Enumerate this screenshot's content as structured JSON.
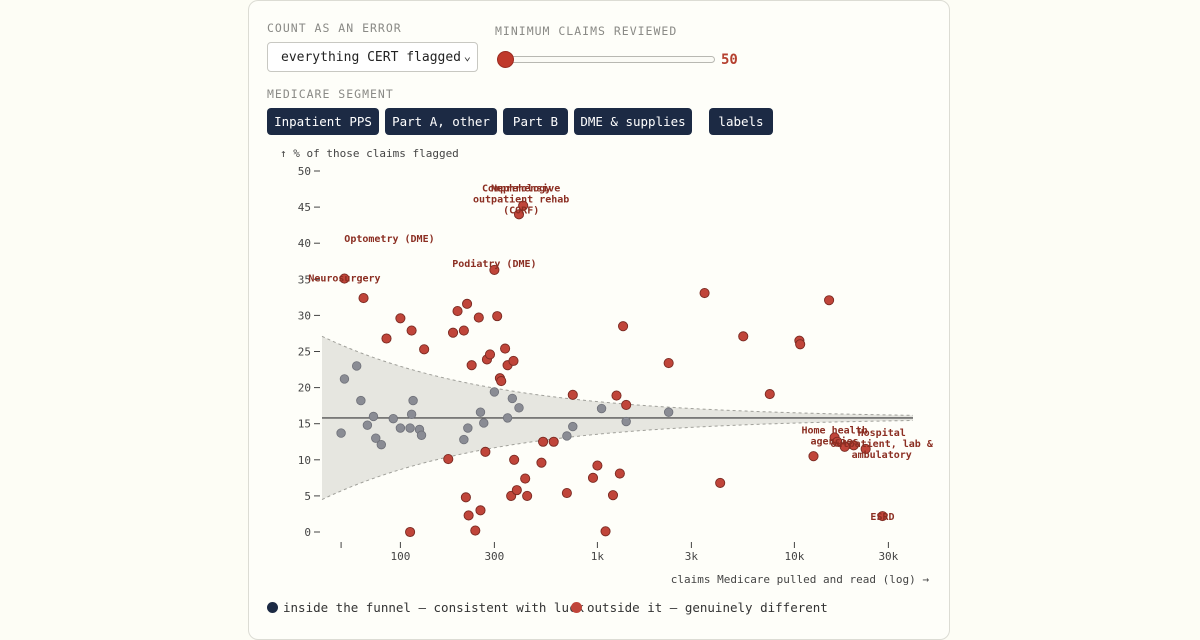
{
  "controls": {
    "error_label": "COUNT AS AN ERROR",
    "error_value": "everything CERT flagged",
    "claims_label": "MINIMUM CLAIMS REVIEWED",
    "claims_value": "50",
    "claims_slider_fraction": 0.0,
    "segment_label": "MEDICARE SEGMENT",
    "segments": [
      "Inpatient PPS",
      "Part A, other",
      "Part B",
      "DME & supplies"
    ],
    "labels_button": "labels"
  },
  "legend": {
    "inside": "inside the funnel — consistent with luck",
    "outside": "outside it — genuinely different"
  },
  "colors": {
    "inside": "#8a8c94",
    "outside": "#c0453a",
    "button": "#1c2a44",
    "funnel": "#e6e6e0"
  },
  "chart_data": {
    "type": "scatter",
    "x_scale": "log",
    "xlabel": "claims Medicare pulled and read (log) →",
    "ylabel": "↑ % of those claims flagged",
    "xlim": [
      40,
      40000
    ],
    "ylim": [
      0,
      50
    ],
    "x_ticks": [
      {
        "value": 50,
        "label": ""
      },
      {
        "value": 100,
        "label": "100"
      },
      {
        "value": 300,
        "label": "300"
      },
      {
        "value": 1000,
        "label": "1k"
      },
      {
        "value": 3000,
        "label": "3k"
      },
      {
        "value": 10000,
        "label": "10k"
      },
      {
        "value": 30000,
        "label": "30k"
      }
    ],
    "y_ticks": [
      0,
      5,
      10,
      15,
      20,
      25,
      30,
      35,
      40,
      45,
      50
    ],
    "mean_rate": 15.8,
    "funnel_n_range": [
      40,
      40000
    ],
    "inside_points": [
      [
        50,
        13.7
      ],
      [
        52,
        21.2
      ],
      [
        60,
        23
      ],
      [
        63,
        18.2
      ],
      [
        68,
        14.8
      ],
      [
        73,
        16
      ],
      [
        75,
        13
      ],
      [
        80,
        12.1
      ],
      [
        92,
        15.7
      ],
      [
        100,
        14.4
      ],
      [
        112,
        14.4
      ],
      [
        114,
        16.3
      ],
      [
        116,
        18.2
      ],
      [
        125,
        14.2
      ],
      [
        128,
        13.4
      ],
      [
        210,
        12.8
      ],
      [
        220,
        14.4
      ],
      [
        255,
        16.6
      ],
      [
        265,
        15.1
      ],
      [
        300,
        19.4
      ],
      [
        350,
        15.8
      ],
      [
        370,
        18.5
      ],
      [
        400,
        17.2
      ],
      [
        700,
        13.3
      ],
      [
        750,
        14.6
      ],
      [
        1050,
        17.1
      ],
      [
        1400,
        15.3
      ],
      [
        2300,
        16.6
      ]
    ],
    "outside_points": [
      [
        52,
        35.1
      ],
      [
        65,
        32.4
      ],
      [
        85,
        26.8
      ],
      [
        100,
        29.6
      ],
      [
        112,
        0
      ],
      [
        114,
        27.9
      ],
      [
        132,
        25.3
      ],
      [
        175,
        10.1
      ],
      [
        185,
        27.6
      ],
      [
        195,
        30.6
      ],
      [
        210,
        27.9
      ],
      [
        215,
        4.8
      ],
      [
        218,
        31.6
      ],
      [
        222,
        2.3
      ],
      [
        230,
        23.1
      ],
      [
        240,
        0.2
      ],
      [
        250,
        29.7
      ],
      [
        255,
        3.0
      ],
      [
        270,
        11.1
      ],
      [
        275,
        23.9
      ],
      [
        285,
        24.6
      ],
      [
        300,
        36.3
      ],
      [
        310,
        29.9
      ],
      [
        320,
        21.3
      ],
      [
        325,
        20.9
      ],
      [
        340,
        25.4
      ],
      [
        350,
        23.1
      ],
      [
        365,
        5.0
      ],
      [
        375,
        23.7
      ],
      [
        378,
        10.0
      ],
      [
        390,
        5.8
      ],
      [
        400,
        44.0
      ],
      [
        420,
        45.2
      ],
      [
        430,
        7.4
      ],
      [
        440,
        5.0
      ],
      [
        520,
        9.6
      ],
      [
        530,
        12.5
      ],
      [
        600,
        12.5
      ],
      [
        700,
        5.4
      ],
      [
        750,
        19.0
      ],
      [
        950,
        7.5
      ],
      [
        1000,
        9.2
      ],
      [
        1100,
        0.1
      ],
      [
        1200,
        5.1
      ],
      [
        1250,
        18.9
      ],
      [
        1300,
        8.1
      ],
      [
        1350,
        28.5
      ],
      [
        1400,
        17.6
      ],
      [
        2300,
        23.4
      ],
      [
        3500,
        33.1
      ],
      [
        4200,
        6.8
      ],
      [
        5500,
        27.1
      ],
      [
        7500,
        19.1
      ],
      [
        10600,
        26.5
      ],
      [
        10700,
        26
      ],
      [
        12500,
        10.5
      ],
      [
        15000,
        32.1
      ],
      [
        16000,
        13.1
      ],
      [
        16500,
        12.5
      ],
      [
        18000,
        11.8
      ],
      [
        20000,
        12.0
      ],
      [
        23000,
        11.5
      ],
      [
        28000,
        2.2
      ]
    ],
    "annotations": [
      {
        "text": "Neurosurgery",
        "x": 52,
        "y": 35.1
      },
      {
        "text": "Optometry (DME)",
        "x": 88,
        "y": 40.6
      },
      {
        "text": "Podiatry (DME)",
        "x": 300,
        "y": 36.3
      },
      {
        "text": "Comprehensive outpatient rehab (CORF)",
        "x": 420,
        "y": 45.2
      },
      {
        "text": "Nephrology",
        "x": 410,
        "y": 45.2
      },
      {
        "text": "Home health agencies",
        "x": 16000,
        "y": 13.1
      },
      {
        "text": "Hospital outpatient, lab & ambulatory",
        "x": 20000,
        "y": 12.2
      },
      {
        "text": "ESRD",
        "x": 28000,
        "y": 2.2
      }
    ]
  }
}
